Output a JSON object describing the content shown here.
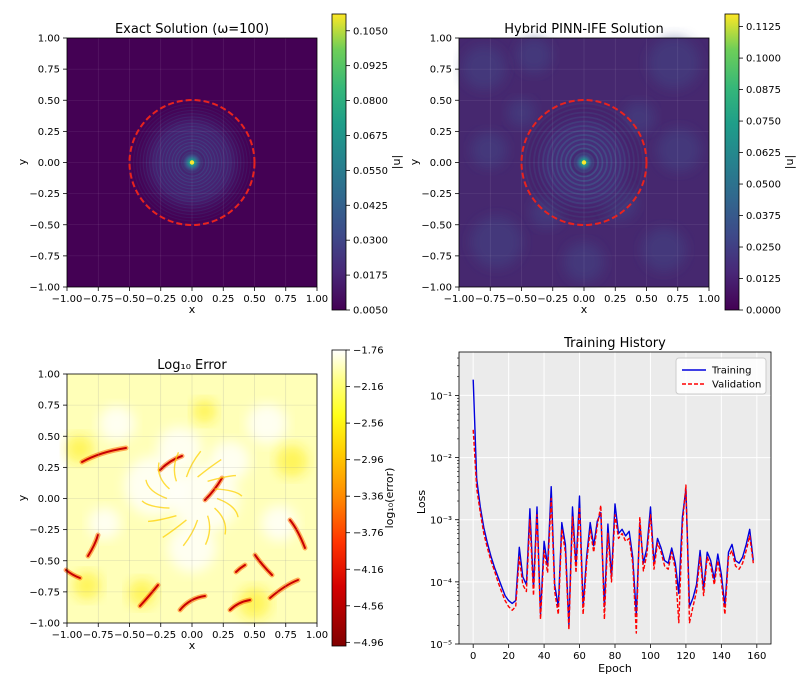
{
  "chart_data": [
    {
      "type": "heatmap",
      "title": "Exact Solution (ω=100)",
      "xlabel": "x",
      "ylabel": "y",
      "colorbar_label": "|u|",
      "colormap": "viridis",
      "xlim": [
        -1.0,
        1.0
      ],
      "ylim": [
        -1.0,
        1.0
      ],
      "xticks": [
        "−1.00",
        "−0.75",
        "−0.50",
        "−0.25",
        "0.00",
        "0.25",
        "0.50",
        "0.75",
        "1.00"
      ],
      "yticks": [
        "1.00",
        "0.75",
        "0.50",
        "0.25",
        "0.00",
        "−0.25",
        "−0.50",
        "−0.75",
        "−1.00"
      ],
      "colorbar_range": [
        0.005,
        0.111
      ],
      "colorbar_ticks": [
        "0.1050",
        "0.0925",
        "0.0800",
        "0.0675",
        "0.0550",
        "0.0425",
        "0.0300",
        "0.0175",
        "0.0050"
      ],
      "colorbar_values": [
        0.105,
        0.0925,
        0.08,
        0.0675,
        0.055,
        0.0425,
        0.03,
        0.0175,
        0.005
      ],
      "interface": {
        "shape": "circle",
        "center": [
          0,
          0
        ],
        "radius": 0.5,
        "style": "dashed",
        "color": "#e8231e"
      },
      "peak": {
        "x": 0,
        "y": 0
      }
    },
    {
      "type": "heatmap",
      "title": "Hybrid PINN-IFE Solution",
      "xlabel": "x",
      "ylabel": "y",
      "colorbar_label": "|u|",
      "colormap": "viridis",
      "xlim": [
        -1.0,
        1.0
      ],
      "ylim": [
        -1.0,
        1.0
      ],
      "xticks": [
        "−1.00",
        "−0.75",
        "−0.50",
        "−0.25",
        "0.00",
        "0.25",
        "0.50",
        "0.75",
        "1.00"
      ],
      "yticks": [
        "1.00",
        "0.75",
        "0.50",
        "0.25",
        "0.00",
        "−0.25",
        "−0.50",
        "−0.75",
        "−1.00"
      ],
      "colorbar_range": [
        0.0,
        0.1175
      ],
      "colorbar_ticks": [
        "0.1125",
        "0.1000",
        "0.0875",
        "0.0750",
        "0.0625",
        "0.0500",
        "0.0375",
        "0.0250",
        "0.0125",
        "0.0000"
      ],
      "colorbar_values": [
        0.1125,
        0.1,
        0.0875,
        0.075,
        0.0625,
        0.05,
        0.0375,
        0.025,
        0.0125,
        0.0
      ],
      "interface": {
        "shape": "circle",
        "center": [
          0,
          0
        ],
        "radius": 0.5,
        "style": "dashed",
        "color": "#e8231e"
      },
      "peak": {
        "x": 0,
        "y": 0
      }
    },
    {
      "type": "heatmap",
      "title": "Log₁₀ Error",
      "xlabel": "x",
      "ylabel": "y",
      "colorbar_label": "log₁₀(error)",
      "colormap": "hot",
      "xlim": [
        -1.0,
        1.0
      ],
      "ylim": [
        -1.0,
        1.0
      ],
      "xticks": [
        "−1.00",
        "−0.75",
        "−0.50",
        "−0.25",
        "0.00",
        "0.25",
        "0.50",
        "0.75",
        "1.00"
      ],
      "yticks": [
        "1.00",
        "0.75",
        "0.50",
        "0.25",
        "0.00",
        "−0.25",
        "−0.50",
        "−0.75",
        "−1.00"
      ],
      "colorbar_range": [
        -5.0,
        -1.76
      ],
      "colorbar_ticks": [
        "−1.76",
        "−2.16",
        "−2.56",
        "−2.96",
        "−3.36",
        "−3.76",
        "−4.16",
        "−4.56",
        "−4.96"
      ],
      "colorbar_values": [
        -1.76,
        -2.16,
        -2.56,
        -2.96,
        -3.36,
        -3.76,
        -4.16,
        -4.56,
        -4.96
      ]
    },
    {
      "type": "line",
      "title": "Training History",
      "xlabel": "Epoch",
      "ylabel": "Loss",
      "yscale": "log",
      "xlim": [
        -8,
        168
      ],
      "ylim": [
        1e-05,
        0.5
      ],
      "xticks": [
        0,
        20,
        40,
        60,
        80,
        100,
        120,
        140,
        160
      ],
      "yticks": [
        {
          "value": 0.1,
          "label": "10⁻¹"
        },
        {
          "value": 0.01,
          "label": "10⁻²"
        },
        {
          "value": 0.001,
          "label": "10⁻³"
        },
        {
          "value": 0.0001,
          "label": "10⁻⁴"
        },
        {
          "value": 1e-05,
          "label": "10⁻⁵"
        }
      ],
      "legend": "top-right",
      "grid": true,
      "x": [
        0,
        2,
        4,
        6,
        8,
        10,
        12,
        14,
        16,
        18,
        20,
        22,
        24,
        26,
        28,
        30,
        32,
        34,
        36,
        38,
        40,
        42,
        44,
        46,
        48,
        50,
        52,
        54,
        56,
        58,
        60,
        62,
        64,
        66,
        68,
        70,
        72,
        74,
        76,
        78,
        80,
        82,
        84,
        86,
        88,
        90,
        92,
        94,
        96,
        98,
        100,
        102,
        104,
        106,
        108,
        110,
        112,
        114,
        116,
        118,
        120,
        122,
        124,
        126,
        128,
        130,
        132,
        134,
        136,
        138,
        140,
        142,
        144,
        146,
        148,
        150,
        152,
        154,
        156,
        158
      ],
      "series": [
        {
          "name": "Training",
          "color": "#0000dd",
          "style": "solid",
          "values": [
            0.18,
            0.0045,
            0.0016,
            0.00075,
            0.00042,
            0.00026,
            0.00017,
            0.00012,
            8.5e-05,
            6e-05,
            5e-05,
            4.5e-05,
            5e-05,
            0.00036,
            0.00012,
            9e-05,
            0.0015,
            8e-05,
            0.0016,
            3e-05,
            0.00045,
            0.00018,
            0.0034,
            9e-05,
            4e-05,
            0.0009,
            0.0004,
            2e-05,
            0.0016,
            0.00018,
            0.0024,
            4e-05,
            0.00025,
            0.0009,
            0.00038,
            0.00095,
            0.0013,
            4e-05,
            0.00085,
            0.00012,
            0.0018,
            0.0006,
            0.0007,
            0.00055,
            0.00065,
            0.00025,
            3e-05,
            0.0009,
            0.0002,
            0.00035,
            0.0016,
            0.0002,
            0.0005,
            0.00035,
            0.00022,
            0.0002,
            0.00035,
            0.0002,
            6.5e-05,
            0.0011,
            0.0031,
            4e-05,
            5.5e-05,
            9e-05,
            0.00032,
            7.5e-05,
            0.0003,
            0.00022,
            0.00011,
            0.00028,
            0.00013,
            4e-05,
            0.0003,
            0.0004,
            0.00022,
            0.0002,
            0.00025,
            0.0004,
            0.0007,
            0.00022
          ]
        },
        {
          "name": "Validation",
          "color": "#ff0000",
          "style": "dashed",
          "values": [
            0.028,
            0.0032,
            0.0013,
            0.0006,
            0.00035,
            0.00022,
            0.00015,
            0.0001,
            7e-05,
            5e-05,
            4e-05,
            3.5e-05,
            4e-05,
            0.00025,
            9e-05,
            7e-05,
            0.001,
            6e-05,
            0.0012,
            2.5e-05,
            0.00032,
            0.00014,
            0.0022,
            7e-05,
            3e-05,
            0.0007,
            0.0003,
            1.7e-05,
            0.0011,
            0.00014,
            0.0016,
            3e-05,
            0.0002,
            0.0007,
            0.0003,
            0.0008,
            0.0017,
            2.5e-05,
            0.0006,
            0.0001,
            0.0012,
            0.0005,
            0.0006,
            0.00045,
            0.0005,
            0.0002,
            1.5e-05,
            0.0011,
            0.00015,
            0.00028,
            0.0012,
            0.00016,
            0.00042,
            0.0003,
            0.00018,
            0.00016,
            0.0003,
            0.00016,
            2.2e-05,
            0.0008,
            0.0036,
            2.2e-05,
            4e-05,
            7e-05,
            0.00025,
            6e-05,
            0.00025,
            0.00018,
            9e-05,
            0.00022,
            0.0001,
            3e-05,
            0.00025,
            0.00032,
            0.00018,
            0.00016,
            0.0002,
            0.00032,
            0.00055,
            0.0002
          ]
        }
      ]
    }
  ]
}
